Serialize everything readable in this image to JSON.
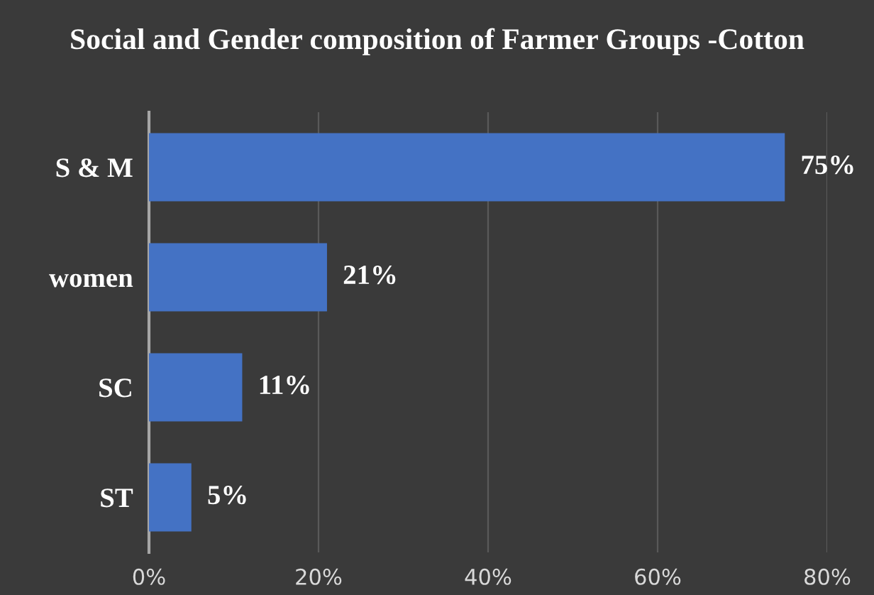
{
  "chart_data": {
    "type": "bar",
    "orientation": "horizontal",
    "title": "Social and Gender composition of Farmer Groups -Cotton",
    "categories": [
      "S & M",
      "women",
      "SC",
      "ST"
    ],
    "values": [
      75,
      21,
      11,
      5
    ],
    "value_labels": [
      "75%",
      "21%",
      "11%",
      "5%"
    ],
    "color": "#4472c4",
    "xlim": [
      0,
      80
    ],
    "xticks": [
      {
        "value": 0,
        "label": "0%"
      },
      {
        "value": 20,
        "label": "20%"
      },
      {
        "value": 40,
        "label": "40%"
      },
      {
        "value": 60,
        "label": "60%"
      },
      {
        "value": 80,
        "label": "80%"
      }
    ],
    "grid": "x"
  }
}
